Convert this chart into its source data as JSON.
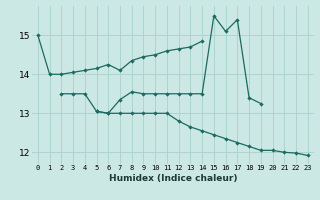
{
  "xlabel": "Humidex (Indice chaleur)",
  "bg_color": "#cce8e4",
  "grid_color": "#aed4cf",
  "line_color": "#1a6b60",
  "x_values": [
    0,
    1,
    2,
    3,
    4,
    5,
    6,
    7,
    8,
    9,
    10,
    11,
    12,
    13,
    14,
    15,
    16,
    17,
    18,
    19,
    20,
    21,
    22,
    23
  ],
  "line1_y": [
    15.0,
    14.0,
    14.0,
    14.05,
    14.1,
    14.15,
    14.25,
    14.1,
    14.35,
    14.45,
    14.5,
    14.6,
    14.65,
    14.7,
    14.85,
    null,
    null,
    null,
    null,
    null,
    null,
    null,
    null,
    null
  ],
  "line2_y": [
    null,
    null,
    13.5,
    13.5,
    13.5,
    13.05,
    13.0,
    13.35,
    13.55,
    13.5,
    13.5,
    13.5,
    13.5,
    13.5,
    13.5,
    15.5,
    15.1,
    15.4,
    13.4,
    13.25,
    null,
    null,
    null,
    null
  ],
  "line3_y": [
    null,
    null,
    null,
    null,
    null,
    13.05,
    13.0,
    13.0,
    13.0,
    13.0,
    13.0,
    13.0,
    12.8,
    12.65,
    12.55,
    12.45,
    12.35,
    12.25,
    12.15,
    12.05,
    12.05,
    12.0,
    11.98,
    11.92
  ],
  "ylim": [
    11.7,
    15.75
  ],
  "yticks": [
    12,
    13,
    14,
    15
  ],
  "xticks": [
    0,
    1,
    2,
    3,
    4,
    5,
    6,
    7,
    8,
    9,
    10,
    11,
    12,
    13,
    14,
    15,
    16,
    17,
    18,
    19,
    20,
    21,
    22,
    23
  ]
}
